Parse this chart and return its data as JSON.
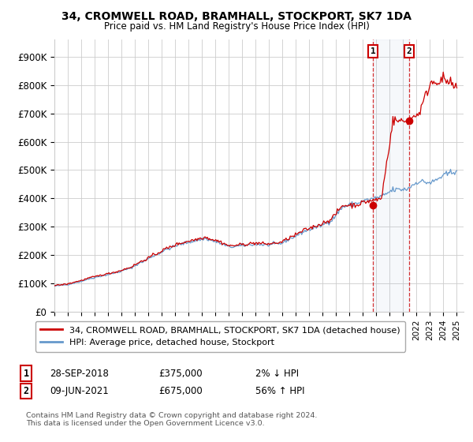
{
  "title": "34, CROMWELL ROAD, BRAMHALL, STOCKPORT, SK7 1DA",
  "subtitle": "Price paid vs. HM Land Registry's House Price Index (HPI)",
  "ylabel_ticks": [
    "£0",
    "£100K",
    "£200K",
    "£300K",
    "£400K",
    "£500K",
    "£600K",
    "£700K",
    "£800K",
    "£900K"
  ],
  "ytick_values": [
    0,
    100000,
    200000,
    300000,
    400000,
    500000,
    600000,
    700000,
    800000,
    900000
  ],
  "ylim": [
    0,
    960000
  ],
  "xlim_start": 1995.0,
  "xlim_end": 2025.5,
  "legend_line1": "34, CROMWELL ROAD, BRAMHALL, STOCKPORT, SK7 1DA (detached house)",
  "legend_line2": "HPI: Average price, detached house, Stockport",
  "annotation1_label": "1",
  "annotation1_date": "28-SEP-2018",
  "annotation1_price": "£375,000",
  "annotation1_hpi": "2% ↓ HPI",
  "annotation2_label": "2",
  "annotation2_date": "09-JUN-2021",
  "annotation2_price": "£675,000",
  "annotation2_hpi": "56% ↑ HPI",
  "footnote": "Contains HM Land Registry data © Crown copyright and database right 2024.\nThis data is licensed under the Open Government Licence v3.0.",
  "color_red": "#cc0000",
  "color_blue": "#6699cc",
  "color_bg": "#ffffff",
  "color_grid": "#cccccc",
  "sale1_x": 2018.75,
  "sale1_y": 375000,
  "sale2_x": 2021.44,
  "sale2_y": 675000
}
